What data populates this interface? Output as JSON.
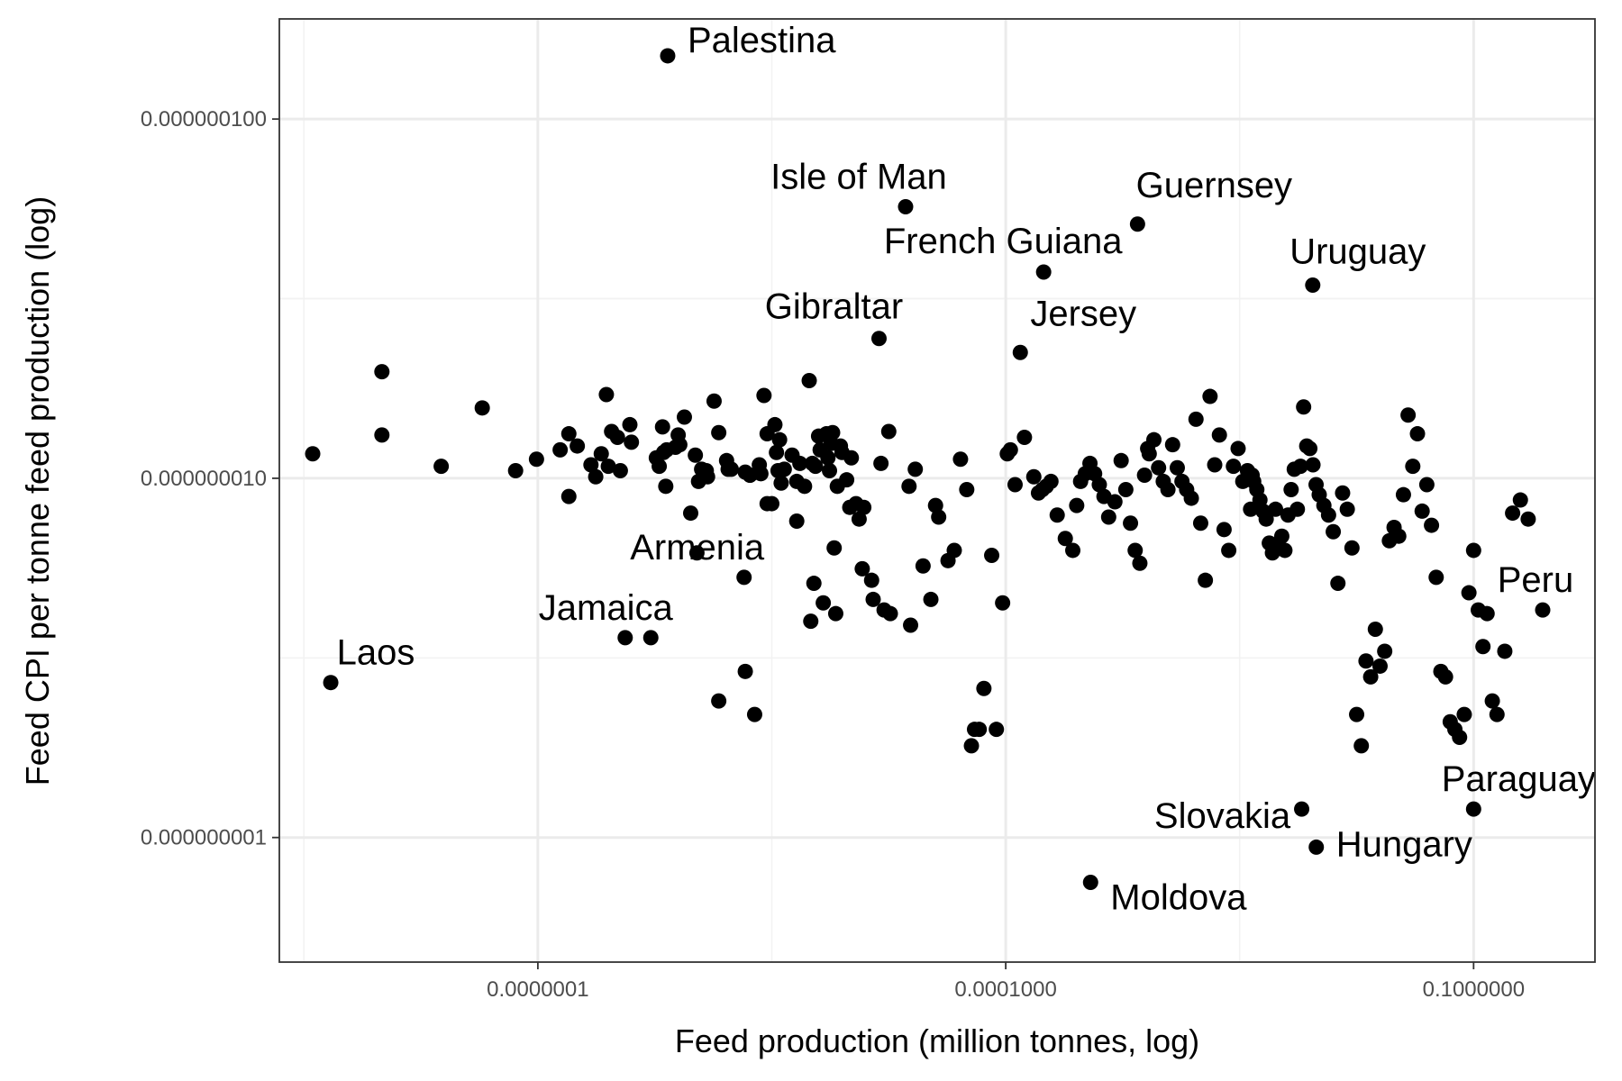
{
  "chart_data": {
    "type": "scatter",
    "title": "",
    "xlabel": "Feed production (million tonnes, log)",
    "ylabel": "Feed CPI per tonne feed production (log)",
    "x_scale": "log10",
    "y_scale": "log10",
    "xlim": [
      2.2e-09,
      0.6
    ],
    "ylim": [
      4.5e-10,
      1.9e-07
    ],
    "grid": true,
    "legend": "none",
    "point_color": "#000000",
    "x_ticks": [
      {
        "value": 1e-07,
        "label": "0.0000001"
      },
      {
        "value": 0.0001,
        "label": "0.0001000"
      },
      {
        "value": 0.1,
        "label": "0.1000000"
      }
    ],
    "y_ticks": [
      {
        "value": 1e-07,
        "label": "0.000000100"
      },
      {
        "value": 1e-08,
        "label": "0.000000010"
      },
      {
        "value": 1e-09,
        "label": "0.000000001"
      }
    ],
    "labeled_points": [
      {
        "name": "Palestina",
        "x": 6.8e-07,
        "y": 1.5e-07
      },
      {
        "name": "Isle of Man",
        "x": 2.28e-05,
        "y": 5.7e-08
      },
      {
        "name": "Guernsey",
        "x": 0.0007,
        "y": 5.1e-08
      },
      {
        "name": "French Guiana",
        "x": 0.000175,
        "y": 3.75e-08
      },
      {
        "name": "Uruguay",
        "x": 0.0093,
        "y": 3.45e-08
      },
      {
        "name": "Gibraltar",
        "x": 1.54e-05,
        "y": 2.45e-08
      },
      {
        "name": "Jersey",
        "x": 0.000124,
        "y": 2.24e-08
      },
      {
        "name": "Armenia",
        "x": 2.1e-06,
        "y": 5.3e-09
      },
      {
        "name": "Jamaica",
        "x": 5.3e-07,
        "y": 3.6e-09
      },
      {
        "name": "Laos",
        "x": 4.7e-09,
        "y": 2.7e-09
      },
      {
        "name": "Peru",
        "x": 0.64,
        "y": 4.3e-09
      },
      {
        "name": "Paraguay",
        "x": 0.1,
        "y": 1.2e-09
      },
      {
        "name": "Slovakia",
        "x": 0.0079,
        "y": 1.2e-09
      },
      {
        "name": "Hungary",
        "x": 0.0098,
        "y": 9.4e-10
      },
      {
        "name": "Moldova",
        "x": 0.00035,
        "y": 7.5e-10
      }
    ],
    "points": [
      [
        3.6e-09,
        1.17e-08
      ],
      [
        1e-08,
        1.98e-08
      ],
      [
        1e-08,
        1.32e-08
      ],
      [
        2.4e-08,
        1.08e-08
      ],
      [
        4.4e-08,
        1.57e-08
      ],
      [
        7.2e-08,
        1.05e-08
      ],
      [
        9.8e-08,
        1.13e-08
      ],
      [
        1.39e-07,
        1.2e-08
      ],
      [
        1.58e-07,
        1.33e-08
      ],
      [
        1.79e-07,
        1.23e-08
      ],
      [
        2.19e-07,
        1.09e-08
      ],
      [
        2.35e-07,
        1.01e-08
      ],
      [
        2.55e-07,
        1.17e-08
      ],
      [
        2.75e-07,
        1.71e-08
      ],
      [
        2.83e-07,
        1.08e-08
      ],
      [
        2.97e-07,
        1.35e-08
      ],
      [
        3.24e-07,
        1.3e-08
      ],
      [
        3.38e-07,
        1.05e-08
      ],
      [
        3.89e-07,
        1.41e-08
      ],
      [
        3.98e-07,
        1.26e-08
      ],
      [
        5.75e-07,
        1.14e-08
      ],
      [
        6e-07,
        1.08e-08
      ],
      [
        6.3e-07,
        1.39e-08
      ],
      [
        6.4e-07,
        1.18e-08
      ],
      [
        6.61e-07,
        9.5e-09
      ],
      [
        6.7e-07,
        1.2e-08
      ],
      [
        7.63e-07,
        1.22e-08
      ],
      [
        7.94e-07,
        1.32e-08
      ],
      [
        8.13e-07,
        1.24e-08
      ],
      [
        8.7e-07,
        1.48e-08
      ],
      [
        1.023e-06,
        1.16e-08
      ],
      [
        1.072e-06,
        9.8e-09
      ],
      [
        1.122e-06,
        1.06e-08
      ],
      [
        1.202e-06,
        1.05e-08
      ],
      [
        1.225e-06,
        1.01e-08
      ],
      [
        1.349e-06,
        1.64e-08
      ],
      [
        1.445e-06,
        1.34e-08
      ],
      [
        1.66e-06,
        1.06e-08
      ],
      [
        2.138e-06,
        1.04e-08
      ],
      [
        2.291e-06,
        1.02e-08
      ],
      [
        2.291e-06,
        1.02e-08
      ],
      [
        2.692e-06,
        1.03e-08
      ],
      [
        2.818e-06,
        1.7e-08
      ],
      [
        2.951e-06,
        8.5e-09
      ],
      [
        2.951e-06,
        1.33e-08
      ],
      [
        3.311e-06,
        1.41e-08
      ],
      [
        3.388e-06,
        1.18e-08
      ],
      [
        3.467e-06,
        1.05e-08
      ],
      [
        3.548e-06,
        1.28e-08
      ],
      [
        3.631e-06,
        9.7e-09
      ],
      [
        3.802e-06,
        1.06e-08
      ],
      [
        4.266e-06,
        1.16e-08
      ],
      [
        4.571e-06,
        9.8e-09
      ],
      [
        4.786e-06,
        1.1e-08
      ],
      [
        5.129e-06,
        9.5e-09
      ],
      [
        5.495e-06,
        1.87e-08
      ],
      [
        5.754e-06,
        1.1e-08
      ],
      [
        6.026e-06,
        1.08e-08
      ],
      [
        6.31e-06,
        1.31e-08
      ],
      [
        6.457e-06,
        1.2e-08
      ],
      [
        7.079e-06,
        1.33e-08
      ],
      [
        7.244e-06,
        1.14e-08
      ],
      [
        7.413e-06,
        1.05e-08
      ],
      [
        7.586e-06,
        1.25e-08
      ],
      [
        7.762e-06,
        1.34e-08
      ],
      [
        8.318e-06,
        9.5e-09
      ],
      [
        8.71e-06,
        1.23e-08
      ],
      [
        8.913e-06,
        1.18e-08
      ],
      [
        9.55e-06,
        9.9e-09
      ],
      [
        1e-05,
        8.3e-09
      ],
      [
        1.0965e-05,
        8.5e-09
      ],
      [
        1.1482e-05,
        7.7e-09
      ],
      [
        1.2023e-05,
        5.6e-09
      ],
      [
        1.2303e-05,
        8.3e-09
      ],
      [
        1.58e-07,
        8.9e-09
      ],
      [
        1.047e-06,
        6.2e-09
      ],
      [
        1.622e-06,
        1.12e-08
      ],
      [
        1.738e-06,
        1.06e-08
      ],
      [
        2.63e-06,
        1.09e-08
      ],
      [
        3.162e-06,
        8.5e-09
      ],
      [
        6.761e-06,
        4.5e-09
      ],
      [
        7.943e-06,
        6.4e-09
      ],
      [
        8.128e-06,
        4.2e-09
      ],
      [
        9.55e-07,
        8e-09
      ],
      [
        1.0233e-05,
        1.14e-08
      ],
      [
        1.3804e-05,
        5.2e-09
      ],
      [
        1.6596e-05,
        4.3e-09
      ],
      [
        1.4125e-05,
        4.6e-09
      ],
      [
        1.8197e-05,
        4.2e-09
      ],
      [
        2.4547e-05,
        3.9e-09
      ],
      [
        5.623e-06,
        4e-09
      ],
      [
        4.571e-06,
        7.6e-09
      ],
      [
        5.888e-06,
        5.1e-09
      ],
      [
        2.138e-06,
        2.9e-09
      ],
      [
        3.63e-07,
        3.6e-09
      ],
      [
        1.445e-06,
        2.4e-09
      ],
      [
        2.455e-06,
        2.2e-09
      ],
      [
        1.5849e-05,
        1.1e-08
      ],
      [
        1.7783e-05,
        1.35e-08
      ],
      [
        2.3988e-05,
        9.5e-09
      ],
      [
        2.6303e-05,
        1.06e-08
      ],
      [
        2.9512e-05,
        5.7e-09
      ],
      [
        3.3113e-05,
        4.6e-09
      ],
      [
        3.5481e-05,
        8.4e-09
      ],
      [
        3.7154e-05,
        7.8e-09
      ],
      [
        4.2658e-05,
        5.9e-09
      ],
      [
        4.6774e-05,
        6.3e-09
      ],
      [
        5.1286e-05,
        1.13e-08
      ],
      [
        5.6234e-05,
        9.3e-09
      ],
      [
        6.0256e-05,
        1.8e-09
      ],
      [
        6.3096e-05,
        2e-09
      ],
      [
        6.7608e-05,
        2e-09
      ],
      [
        7.2444e-05,
        2.6e-09
      ],
      [
        8.1283e-05,
        6.1e-09
      ],
      [
        8.7096e-05,
        2e-09
      ],
      [
        9.5499e-05,
        4.5e-09
      ],
      [
        0.000102329,
        1.17e-08
      ],
      [
        0.000107152,
        1.2e-08
      ],
      [
        0.000114815,
        9.6e-09
      ],
      [
        0.000131826,
        1.3e-08
      ],
      [
        0.000151356,
        1.01e-08
      ],
      [
        0.000162181,
        9.1e-09
      ],
      [
        0.000171791,
        9.3e-09
      ],
      [
        0.00018197,
        9.5e-09
      ],
      [
        0.000194984,
        9.8e-09
      ],
      [
        0.000213796,
        7.9e-09
      ],
      [
        0.00024099,
        6.8e-09
      ],
      [
        0.000269153,
        6.3e-09
      ],
      [
        0.000285102,
        8.4e-09
      ],
      [
        0.000301995,
        9.8e-09
      ],
      [
        0.000323594,
        1.03e-08
      ],
      [
        0.000346737,
        1.1e-08
      ],
      [
        0.000371535,
        1.03e-08
      ],
      [
        0.000398107,
        9.6e-09
      ],
      [
        0.00042658,
        8.9e-09
      ],
      [
        0.000457088,
        7.8e-09
      ],
      [
        0.000501187,
        8.6e-09
      ],
      [
        0.000549541,
        1.12e-08
      ],
      [
        0.000588844,
        9.3e-09
      ],
      [
        0.000630957,
        7.5e-09
      ],
      [
        0.000676083,
        6.3e-09
      ],
      [
        0.000724436,
        5.8e-09
      ],
      [
        0.000776247,
        1.02e-08
      ],
      [
        0.000812831,
        1.21e-08
      ],
      [
        0.000831764,
        1.17e-08
      ],
      [
        0.000891251,
        1.28e-08
      ],
      [
        0.000954993,
        1.07e-08
      ],
      [
        0.001023293,
        9.8e-09
      ],
      [
        0.001096478,
        9.3e-09
      ],
      [
        0.001174898,
        1.24e-08
      ],
      [
        0.001258925,
        1.07e-08
      ],
      [
        0.001348963,
        9.8e-09
      ],
      [
        0.00144544,
        9.3e-09
      ],
      [
        0.001548817,
        8.8e-09
      ],
      [
        0.001659587,
        1.46e-08
      ],
      [
        0.001778279,
        7.5e-09
      ],
      [
        0.001905461,
        5.2e-09
      ],
      [
        0.002041738,
        1.69e-08
      ],
      [
        0.002187762,
        1.09e-08
      ],
      [
        0.002344229,
        1.32e-08
      ],
      [
        0.002511886,
        7.2e-09
      ],
      [
        0.002691535,
        6.3e-09
      ],
      [
        0.002884032,
        1.08e-08
      ],
      [
        0.003090295,
        1.21e-08
      ],
      [
        0.003311311,
        9.8e-09
      ],
      [
        0.003548134,
        1.05e-08
      ],
      [
        0.003715352,
        8.2e-09
      ],
      [
        0.003801894,
        1.02e-08
      ],
      [
        0.003890451,
        9.8e-09
      ],
      [
        0.004073803,
        9.3e-09
      ],
      [
        0.004265795,
        8.7e-09
      ],
      [
        0.004466836,
        8.1e-09
      ],
      [
        0.004677351,
        7.7e-09
      ],
      [
        0.004897788,
        6.6e-09
      ],
      [
        0.005128614,
        6.2e-09
      ],
      [
        0.005370318,
        8.2e-09
      ],
      [
        0.005623413,
        6.4e-09
      ],
      [
        0.005888437,
        6.9e-09
      ],
      [
        0.00616595,
        6.3e-09
      ],
      [
        0.006456542,
        7.9e-09
      ],
      [
        0.00676083,
        9.3e-09
      ],
      [
        0.007079458,
        1.06e-08
      ],
      [
        0.007413102,
        8.2e-09
      ],
      [
        0.007762471,
        1.08e-08
      ],
      [
        0.008128305,
        1.58e-08
      ],
      [
        0.00851138,
        1.23e-08
      ],
      [
        0.008912509,
        1.21e-08
      ],
      [
        0.009332543,
        1.09e-08
      ],
      [
        0.009772372,
        9.6e-09
      ],
      [
        0.01023293,
        9e-09
      ],
      [
        0.01096478,
        8.4e-09
      ],
      [
        0.01174898,
        7.9e-09
      ],
      [
        0.01258925,
        7.1e-09
      ],
      [
        0.01348963,
        5.1e-09
      ],
      [
        0.0144544,
        9.1e-09
      ],
      [
        0.01548817,
        8.2e-09
      ],
      [
        0.01659587,
        6.4e-09
      ],
      [
        0.01778279,
        2.2e-09
      ],
      [
        0.01905461,
        1.8e-09
      ],
      [
        0.02041738,
        3.1e-09
      ],
      [
        0.02187762,
        2.8e-09
      ],
      [
        0.02344229,
        3.8e-09
      ],
      [
        0.02511886,
        3e-09
      ],
      [
        0.02691535,
        3.3e-09
      ],
      [
        0.02884032,
        6.7e-09
      ],
      [
        0.03090295,
        7.3e-09
      ],
      [
        0.03311311,
        6.9e-09
      ],
      [
        0.03548134,
        9e-09
      ],
      [
        0.03801894,
        1.5e-08
      ],
      [
        0.04073803,
        1.08e-08
      ],
      [
        0.04365158,
        1.33e-08
      ],
      [
        0.04677351,
        8.1e-09
      ],
      [
        0.05011872,
        9.6e-09
      ],
      [
        0.05370318,
        7.4e-09
      ],
      [
        0.05754399,
        5.3e-09
      ],
      [
        0.0616595,
        2.9e-09
      ],
      [
        0.06606934,
        2.8e-09
      ],
      [
        0.07079458,
        2.1e-09
      ],
      [
        0.07585776,
        2e-09
      ],
      [
        0.08128305,
        1.9e-09
      ],
      [
        0.08709636,
        2.2e-09
      ],
      [
        0.09332543,
        4.8e-09
      ],
      [
        0.1,
        6.3e-09
      ],
      [
        0.1071519,
        4.3e-09
      ],
      [
        0.1148154,
        3.4e-09
      ],
      [
        0.1220185,
        4.2e-09
      ],
      [
        0.1318257,
        2.4e-09
      ],
      [
        0.1412538,
        2.2e-09
      ],
      [
        0.1584893,
        3.3e-09
      ],
      [
        0.1778279,
        8e-09
      ],
      [
        0.1995262,
        8.7e-09
      ],
      [
        0.2238721,
        7.7e-09
      ]
    ]
  }
}
